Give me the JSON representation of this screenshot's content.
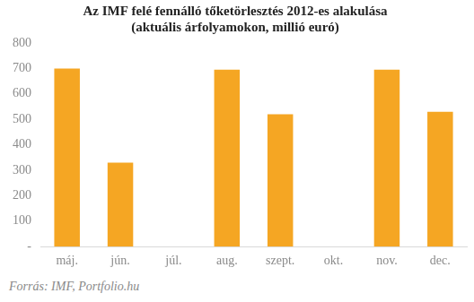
{
  "chart_data": {
    "type": "bar",
    "title": "Az IMF felé fennálló tőketörlesztés 2012-es alakulása",
    "subtitle": "(aktuális árfolyamokon, millió euró)",
    "source": "Forrás: IMF, Portfolio.hu",
    "categories": [
      "máj.",
      "jún.",
      "júl.",
      "aug.",
      "szept.",
      "okt.",
      "nov.",
      "dec."
    ],
    "values": [
      700,
      330,
      0,
      695,
      520,
      0,
      695,
      530
    ],
    "color": "#f5a623",
    "ylim": [
      0,
      800
    ],
    "yticks": [
      {
        "value": 0,
        "label": "-"
      },
      100,
      200,
      300,
      400,
      500,
      600,
      700,
      800
    ],
    "grid": false
  }
}
